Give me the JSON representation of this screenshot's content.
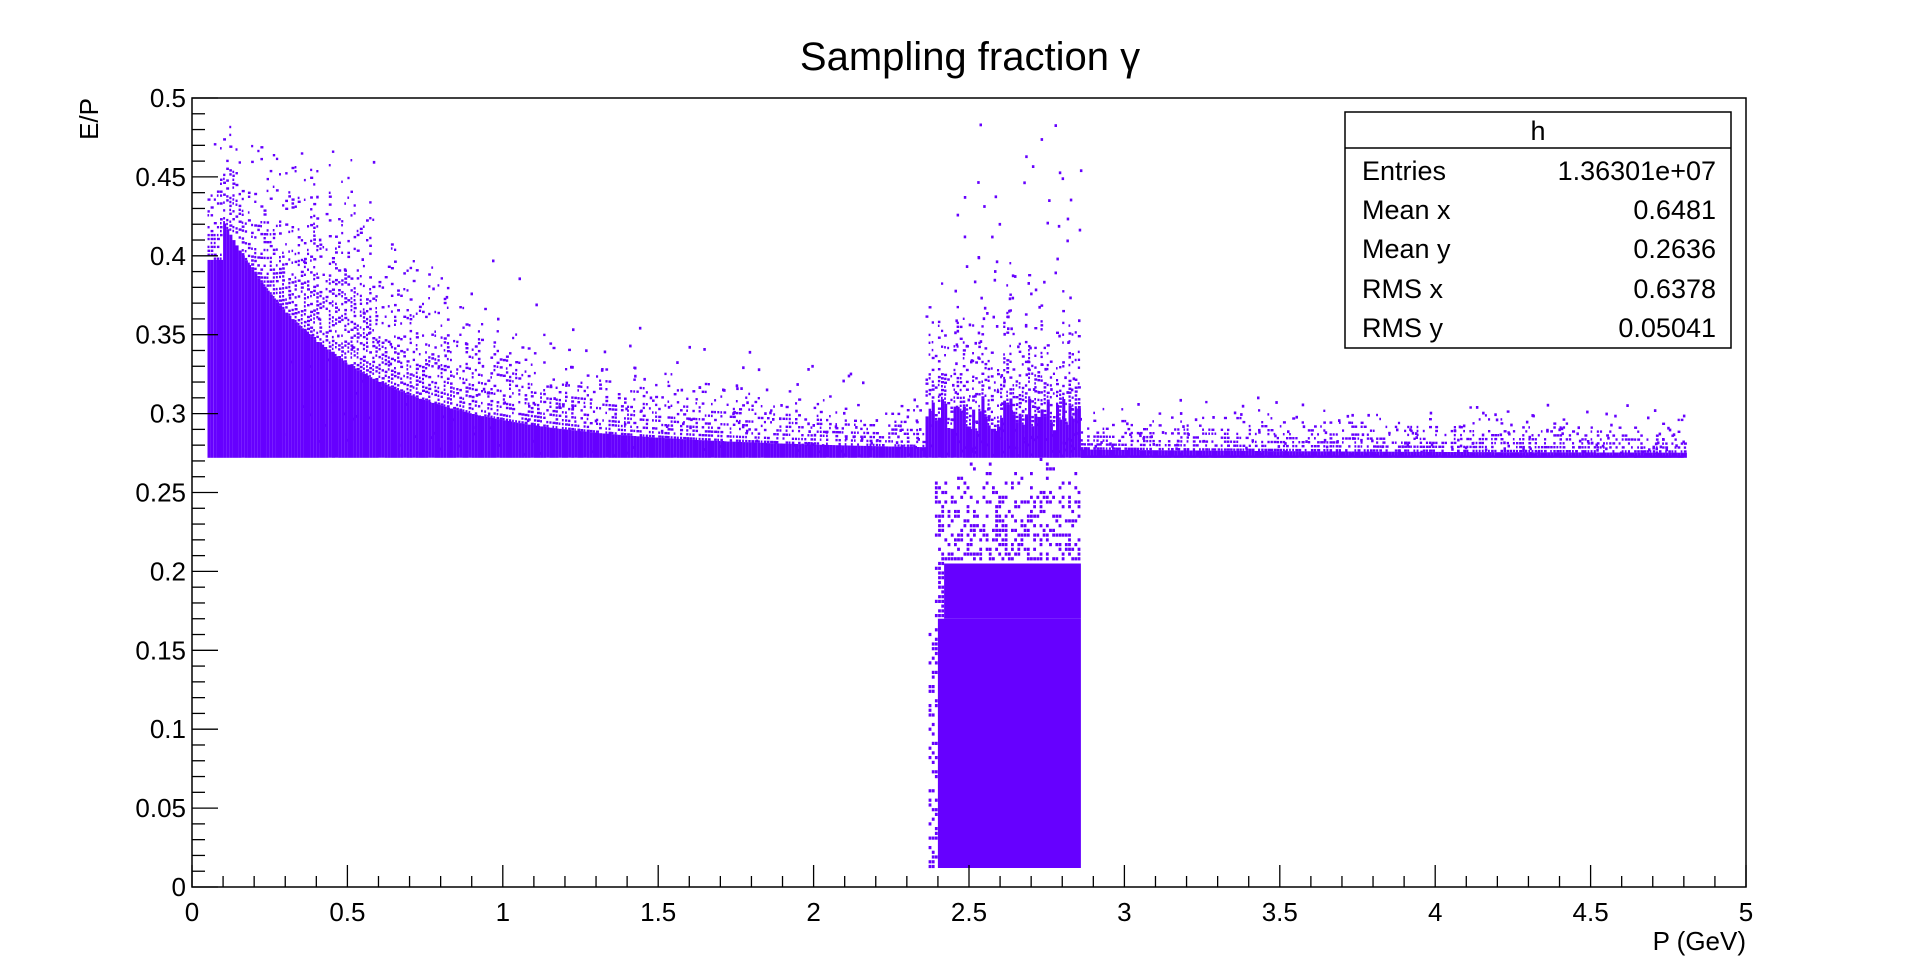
{
  "chart_data": {
    "type": "heatmap",
    "title": "Sampling fraction γ",
    "xlabel": "P (GeV)",
    "ylabel": "E/P",
    "xlim": [
      0,
      5
    ],
    "ylim": [
      0,
      0.5
    ],
    "x_ticks": [
      "0",
      "0.5",
      "1",
      "1.5",
      "2",
      "2.5",
      "3",
      "3.5",
      "4",
      "4.5",
      "5"
    ],
    "y_ticks": [
      "0",
      "0.05",
      "0.1",
      "0.15",
      "0.2",
      "0.25",
      "0.3",
      "0.35",
      "0.4",
      "0.45",
      "0.5"
    ],
    "grid": false,
    "fill_color": "#6600ff",
    "band_y": 0.272,
    "regions": [
      {
        "name": "low-momentum-dense",
        "x": [
          0.05,
          0.1
        ],
        "y": [
          0.272,
          0.5
        ]
      },
      {
        "name": "decay-band",
        "x": [
          0.1,
          4.8
        ],
        "y": [
          0.272,
          0.5
        ],
        "density": "falls with P"
      },
      {
        "name": "block",
        "x": [
          2.37,
          2.86
        ],
        "y": [
          0.01,
          0.272
        ]
      },
      {
        "name": "block-dense",
        "x": [
          2.4,
          2.86
        ],
        "y": [
          0.01,
          0.17
        ]
      }
    ],
    "stats_box": {
      "name": "h",
      "rows": [
        {
          "label": "Entries",
          "value": "1.36301e+07"
        },
        {
          "label": "Mean x",
          "value": "0.6481"
        },
        {
          "label": "Mean y",
          "value": "0.2636"
        },
        {
          "label": "RMS x",
          "value": "0.6378"
        },
        {
          "label": "RMS y",
          "value": "0.05041"
        }
      ]
    }
  }
}
